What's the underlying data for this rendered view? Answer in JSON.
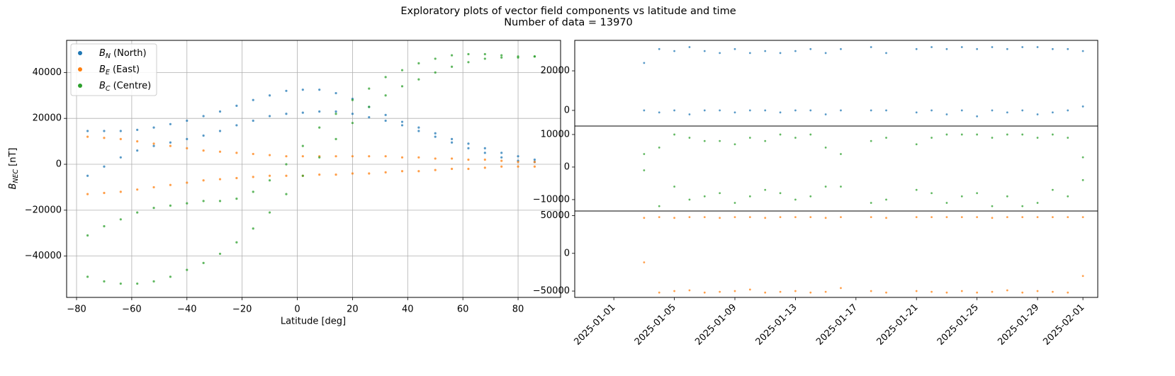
{
  "title": "Exploratory plots of vector field components vs latitude and time",
  "subtitle": "Number of data = 13970",
  "chart_data": [
    {
      "type": "scatter",
      "xlabel": "Latitude [deg]",
      "ylabel": [
        "B",
        "NEC",
        "[nT]"
      ],
      "x": [
        -76,
        -76,
        -70,
        -70,
        -64,
        -64,
        -58,
        -58,
        -52,
        -52,
        -46,
        -46,
        -40,
        -40,
        -34,
        -34,
        -28,
        -28,
        -22,
        -22,
        -16,
        -16,
        -10,
        -10,
        -4,
        -4,
        2,
        2,
        8,
        8,
        14,
        14,
        20,
        20,
        26,
        26,
        32,
        32,
        38,
        38,
        44,
        44,
        50,
        50,
        56,
        56,
        62,
        62,
        68,
        68,
        74,
        74,
        80,
        80,
        86,
        86
      ],
      "series": [
        {
          "name": [
            "B",
            "N",
            "(North)"
          ],
          "color": "#1f77b4",
          "values": [
            14500,
            -5000,
            14500,
            -1000,
            14500,
            3000,
            15000,
            6000,
            16000,
            8000,
            17500,
            9500,
            19000,
            11000,
            21000,
            12500,
            23000,
            14500,
            25500,
            17000,
            28000,
            19000,
            30000,
            21000,
            32000,
            22000,
            32500,
            22500,
            32500,
            23000,
            31000,
            23000,
            28500,
            22000,
            25000,
            20500,
            21500,
            19000,
            18500,
            17000,
            16000,
            14500,
            13500,
            12000,
            11000,
            9500,
            9000,
            7000,
            7000,
            5000,
            5000,
            3000,
            3500,
            1500,
            2000,
            1000
          ]
        },
        {
          "name": [
            "B",
            "E",
            "(East)"
          ],
          "color": "#ff7f0e",
          "values": [
            12000,
            -13000,
            11500,
            -12500,
            11000,
            -12000,
            10000,
            -11000,
            9000,
            -10000,
            8000,
            -9000,
            7000,
            -8000,
            6000,
            -7000,
            5500,
            -6500,
            5000,
            -6000,
            4500,
            -5500,
            4000,
            -5000,
            3500,
            -5000,
            3500,
            -5000,
            3500,
            -4500,
            3500,
            -4500,
            3500,
            -4000,
            3500,
            -4000,
            3500,
            -3500,
            3000,
            -3000,
            3000,
            -3000,
            2500,
            -2500,
            2500,
            -2000,
            2000,
            -2000,
            2000,
            -1500,
            1500,
            -1000,
            1000,
            -1000,
            1000,
            -1000
          ]
        },
        {
          "name": [
            "B",
            "C",
            "(Centre)"
          ],
          "color": "#2ca02c",
          "values": [
            -31000,
            -49000,
            -27000,
            -51000,
            -24000,
            -52000,
            -21000,
            -52000,
            -19000,
            -51000,
            -18000,
            -49000,
            -17000,
            -46000,
            -16000,
            -43000,
            -16000,
            -39000,
            -15000,
            -34000,
            -12000,
            -28000,
            -7000,
            -21000,
            0,
            -13000,
            8000,
            -5000,
            16000,
            3000,
            22000,
            11000,
            28000,
            18000,
            33000,
            25000,
            38000,
            30000,
            41000,
            34000,
            44000,
            37000,
            46000,
            40000,
            47500,
            42500,
            48000,
            44500,
            48000,
            46000,
            47500,
            46500,
            47000,
            46500,
            47000,
            47000
          ]
        }
      ],
      "xlim": [
        -83.6,
        95.4
      ],
      "ylim": [
        -58000,
        54000
      ],
      "xticks": [
        {
          "value": -80,
          "label": "−80"
        },
        {
          "value": -60,
          "label": "−60"
        },
        {
          "value": -40,
          "label": "−40"
        },
        {
          "value": -20,
          "label": "−20"
        },
        0,
        20,
        40,
        60,
        80
      ],
      "yticks": [
        {
          "value": -40000,
          "label": "−40000"
        },
        {
          "value": -20000,
          "label": "−20000"
        },
        0,
        20000,
        40000
      ],
      "grid": true,
      "legend": "upper left"
    },
    {
      "type": "scatter",
      "x": [
        "2025-01-03",
        "2025-01-03",
        "2025-01-04",
        "2025-01-04",
        "2025-01-05",
        "2025-01-05",
        "2025-01-06",
        "2025-01-06",
        "2025-01-07",
        "2025-01-07",
        "2025-01-08",
        "2025-01-08",
        "2025-01-09",
        "2025-01-09",
        "2025-01-10",
        "2025-01-10",
        "2025-01-11",
        "2025-01-11",
        "2025-01-12",
        "2025-01-12",
        "2025-01-13",
        "2025-01-13",
        "2025-01-14",
        "2025-01-14",
        "2025-01-15",
        "2025-01-15",
        "2025-01-16",
        "2025-01-16",
        "2025-01-18",
        "2025-01-18",
        "2025-01-19",
        "2025-01-19",
        "2025-01-21",
        "2025-01-21",
        "2025-01-22",
        "2025-01-22",
        "2025-01-23",
        "2025-01-23",
        "2025-01-24",
        "2025-01-24",
        "2025-01-25",
        "2025-01-25",
        "2025-01-26",
        "2025-01-26",
        "2025-01-27",
        "2025-01-27",
        "2025-01-28",
        "2025-01-28",
        "2025-01-29",
        "2025-01-29",
        "2025-01-30",
        "2025-01-30",
        "2025-01-31",
        "2025-01-31",
        "2025-02-01",
        "2025-02-01"
      ],
      "values": [
        24000,
        0,
        31000,
        -1000,
        30000,
        0,
        32000,
        -2000,
        30000,
        0,
        29000,
        0,
        31000,
        -1000,
        29000,
        0,
        30000,
        0,
        29000,
        -1000,
        30000,
        0,
        31000,
        0,
        29000,
        -2000,
        31000,
        0,
        32000,
        0,
        29000,
        0,
        31000,
        -1000,
        32000,
        0,
        31000,
        -2000,
        32000,
        0,
        31000,
        -3000,
        32000,
        0,
        31000,
        -1000,
        32000,
        0,
        32000,
        -2000,
        31000,
        -1000,
        31000,
        0,
        30000,
        2000
      ],
      "color": "#1f77b4",
      "xlim": [
        "2024-12-29T10:00",
        "2025-02-01T23:30"
      ],
      "ylim": [
        -7900,
        35400
      ],
      "yticks": [
        0,
        20000
      ]
    },
    {
      "type": "scatter",
      "x": [
        "2025-01-03",
        "2025-01-03",
        "2025-01-04",
        "2025-01-04",
        "2025-01-05",
        "2025-01-05",
        "2025-01-06",
        "2025-01-06",
        "2025-01-07",
        "2025-01-07",
        "2025-01-08",
        "2025-01-08",
        "2025-01-09",
        "2025-01-09",
        "2025-01-10",
        "2025-01-10",
        "2025-01-11",
        "2025-01-11",
        "2025-01-12",
        "2025-01-12",
        "2025-01-13",
        "2025-01-13",
        "2025-01-14",
        "2025-01-14",
        "2025-01-15",
        "2025-01-15",
        "2025-01-16",
        "2025-01-16",
        "2025-01-18",
        "2025-01-18",
        "2025-01-19",
        "2025-01-19",
        "2025-01-21",
        "2025-01-21",
        "2025-01-22",
        "2025-01-22",
        "2025-01-23",
        "2025-01-23",
        "2025-01-24",
        "2025-01-24",
        "2025-01-25",
        "2025-01-25",
        "2025-01-26",
        "2025-01-26",
        "2025-01-27",
        "2025-01-27",
        "2025-01-28",
        "2025-01-28",
        "2025-01-29",
        "2025-01-29",
        "2025-01-30",
        "2025-01-30",
        "2025-01-31",
        "2025-01-31",
        "2025-02-01",
        "2025-02-01"
      ],
      "values": [
        4000,
        -1000,
        6000,
        -12000,
        10000,
        -6000,
        9000,
        -10000,
        8000,
        -9000,
        8000,
        -8000,
        7000,
        -11000,
        9000,
        -9000,
        8000,
        -7000,
        10000,
        -8000,
        9000,
        -10000,
        10000,
        -9000,
        6000,
        -6000,
        4000,
        -6000,
        8000,
        -11000,
        9000,
        -10000,
        7000,
        -7000,
        9000,
        -8000,
        10000,
        -11000,
        10000,
        -9000,
        10000,
        -8000,
        9000,
        -12000,
        10000,
        -9000,
        10000,
        -12000,
        9000,
        -11000,
        10000,
        -7000,
        9000,
        -9000,
        3000,
        -4000
      ],
      "color": "#2ca02c",
      "xlim": [
        "2024-12-29T10:00",
        "2025-02-01T23:30"
      ],
      "ylim": [
        -13500,
        12600
      ],
      "yticks": [
        {
          "value": -10000,
          "label": "−10000"
        },
        0,
        10000
      ]
    },
    {
      "type": "scatter",
      "x": [
        "2025-01-03",
        "2025-01-03",
        "2025-01-04",
        "2025-01-04",
        "2025-01-05",
        "2025-01-05",
        "2025-01-06",
        "2025-01-06",
        "2025-01-07",
        "2025-01-07",
        "2025-01-08",
        "2025-01-08",
        "2025-01-09",
        "2025-01-09",
        "2025-01-10",
        "2025-01-10",
        "2025-01-11",
        "2025-01-11",
        "2025-01-12",
        "2025-01-12",
        "2025-01-13",
        "2025-01-13",
        "2025-01-14",
        "2025-01-14",
        "2025-01-15",
        "2025-01-15",
        "2025-01-16",
        "2025-01-16",
        "2025-01-18",
        "2025-01-18",
        "2025-01-19",
        "2025-01-19",
        "2025-01-21",
        "2025-01-21",
        "2025-01-22",
        "2025-01-22",
        "2025-01-23",
        "2025-01-23",
        "2025-01-24",
        "2025-01-24",
        "2025-01-25",
        "2025-01-25",
        "2025-01-26",
        "2025-01-26",
        "2025-01-27",
        "2025-01-27",
        "2025-01-28",
        "2025-01-28",
        "2025-01-29",
        "2025-01-29",
        "2025-01-30",
        "2025-01-30",
        "2025-01-31",
        "2025-01-31",
        "2025-02-01",
        "2025-02-01"
      ],
      "values": [
        47000,
        -12000,
        48000,
        -52000,
        47000,
        -50000,
        48000,
        -49000,
        48000,
        -52000,
        47000,
        -51000,
        48000,
        -50000,
        48000,
        -48000,
        47000,
        -52000,
        48000,
        -51000,
        48000,
        -50000,
        48000,
        -52000,
        47000,
        -51000,
        48000,
        -46000,
        48000,
        -50000,
        47000,
        -52000,
        48000,
        -50000,
        48000,
        -51000,
        48000,
        -52000,
        48000,
        -50000,
        48000,
        -52000,
        47000,
        -51000,
        48000,
        -49000,
        48000,
        -52000,
        48000,
        -50000,
        48000,
        -51000,
        48000,
        -52000,
        48000,
        -30000
      ],
      "color": "#ff7f0e",
      "xlim": [
        "2024-12-29T10:00",
        "2025-02-01T23:30"
      ],
      "ylim": [
        -58400,
        56100
      ],
      "xticks": [
        "2025-01-01",
        "2025-01-05",
        "2025-01-09",
        "2025-01-13",
        "2025-01-17",
        "2025-01-21",
        "2025-01-25",
        "2025-01-29",
        "2025-02-01"
      ],
      "yticks": [
        {
          "value": -50000,
          "label": "−50000"
        },
        0,
        50000
      ]
    }
  ]
}
